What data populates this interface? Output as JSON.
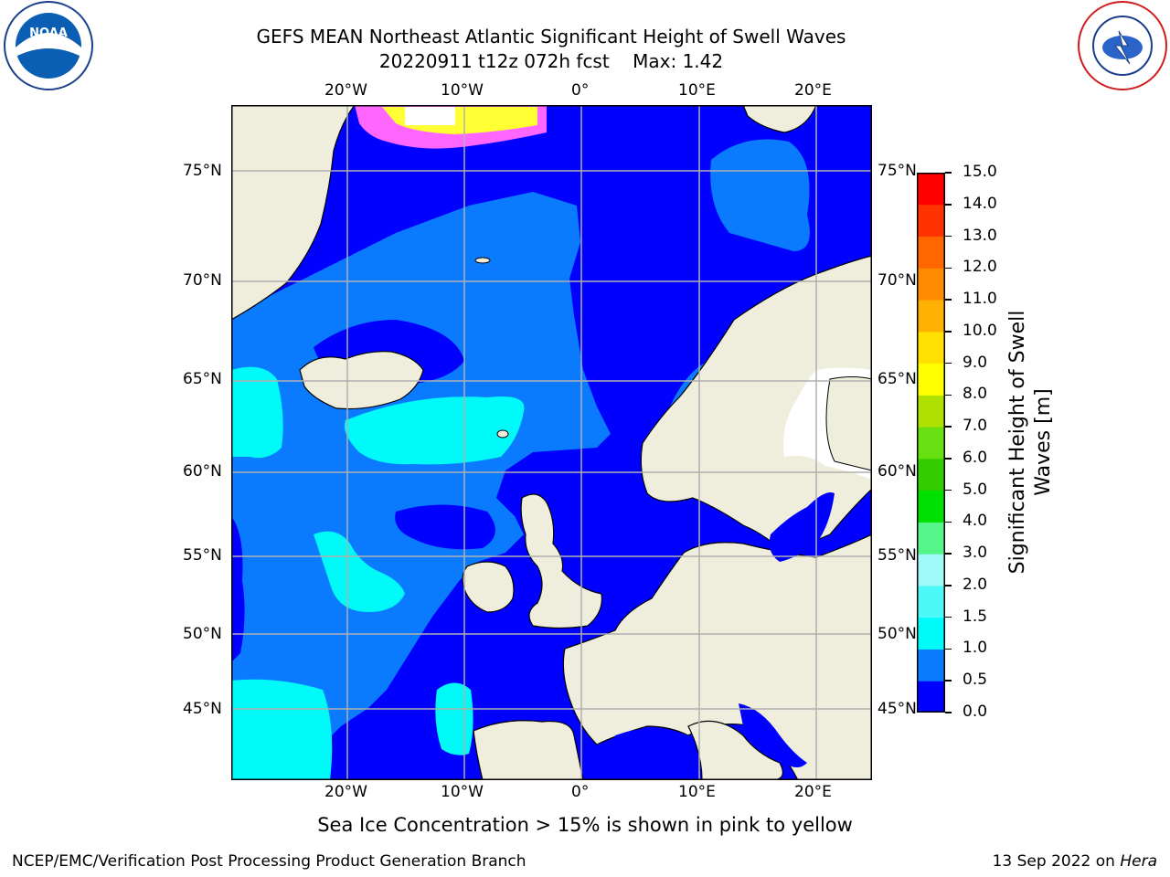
{
  "header": {
    "title_line1": "GEFS MEAN Northeast Atlantic Significant Height of Swell Waves",
    "title_line2": "20220911 t12z 072h fcst    Max: 1.42",
    "left_logo_text": "NOAA",
    "right_logo_text": "NATIONAL WEATHER SERVICE"
  },
  "map": {
    "lon_labels": [
      "20°W",
      "10°W",
      "0°",
      "10°E",
      "20°E"
    ],
    "lat_labels_left": [
      "75°N",
      "70°N",
      "65°N",
      "60°N",
      "55°N",
      "50°N",
      "45°N"
    ],
    "lat_labels_right": [
      "75°N",
      "70°N",
      "65°N",
      "60°N",
      "55°N",
      "50°N",
      "45°N"
    ],
    "colors": {
      "land": "#efeddc",
      "ocean_low": "#0000ff",
      "ocean_mid": "#0a7bff",
      "ocean_high": "#00fafa",
      "ice_pink": "#ff66ff",
      "ice_yellow": "#ffff33",
      "grid": "#b0b0b0"
    }
  },
  "colorbar": {
    "label": "Significant Height of Swell Waves [m]",
    "ticks": [
      "15.0",
      "14.0",
      "13.0",
      "12.0",
      "11.0",
      "10.0",
      "9.0",
      "8.0",
      "7.0",
      "6.0",
      "5.0",
      "4.0",
      "3.0",
      "2.0",
      "1.5",
      "1.0",
      "0.5",
      "0.0"
    ],
    "colors_bottom_to_top": [
      "#0000ff",
      "#0a7bff",
      "#00fafa",
      "#4cf8f8",
      "#a0fafa",
      "#55f58a",
      "#00e000",
      "#33cc00",
      "#66e010",
      "#b0e000",
      "#ffff00",
      "#ffe000",
      "#ffb000",
      "#ff8c00",
      "#ff6600",
      "#ff3300",
      "#ff0000"
    ]
  },
  "footnotes": {
    "sea_ice_note": "Sea Ice Concentration > 15% is shown in pink to yellow",
    "branch": "NCEP/EMC/Verification Post Processing Product Generation Branch",
    "date_prefix": "13 Sep 2022 on ",
    "host": "Hera"
  }
}
